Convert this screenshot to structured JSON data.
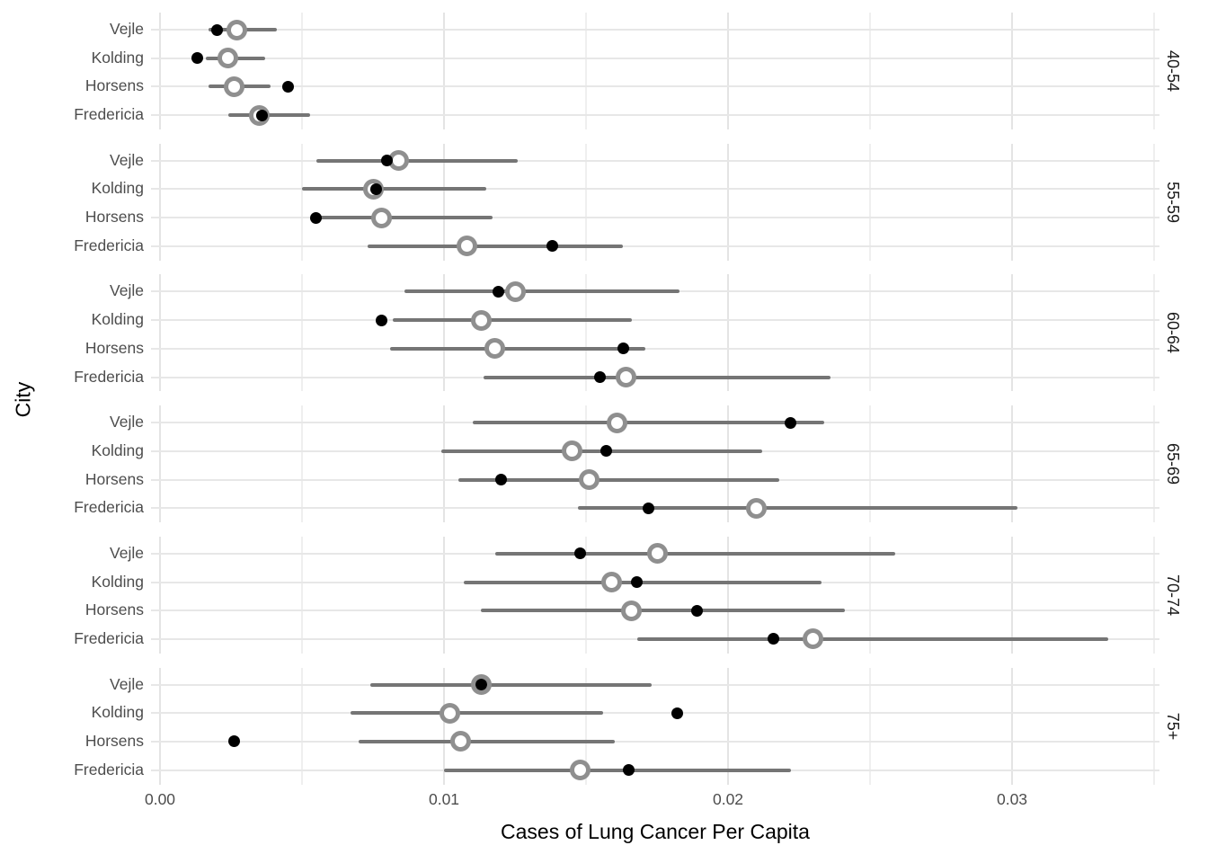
{
  "chart_data": {
    "type": "scatter",
    "subtype": "faceted-pointrange-dotplot",
    "title": "",
    "xlabel": "Cases of Lung Cancer Per Capita",
    "ylabel": "City",
    "x_tick_values": [
      0,
      0.01,
      0.02,
      0.03
    ],
    "x_tick_labels": [
      "0.00",
      "0.01",
      "0.02",
      "0.03"
    ],
    "x_minor_gridlines": [
      0.005,
      0.015,
      0.025,
      0.035
    ],
    "xlim": [
      -0.0003,
      0.0352
    ],
    "grid": true,
    "legend_position": "none",
    "facets": [
      "40-54",
      "55-59",
      "60-64",
      "65-69",
      "70-74",
      "75+"
    ],
    "categories": [
      "Vejle",
      "Kolding",
      "Horsens",
      "Fredericia"
    ],
    "series_legend": {
      "observed": "black filled point",
      "estimate": "gray open circle with gray interval line"
    },
    "rows": [
      {
        "facet": "40-54",
        "city": "Vejle",
        "observed": 0.002,
        "estimate": 0.0027,
        "lower": 0.0017,
        "upper": 0.0041
      },
      {
        "facet": "40-54",
        "city": "Kolding",
        "observed": 0.0013,
        "estimate": 0.0024,
        "lower": 0.0016,
        "upper": 0.0037
      },
      {
        "facet": "40-54",
        "city": "Horsens",
        "observed": 0.0045,
        "estimate": 0.0026,
        "lower": 0.0017,
        "upper": 0.0039
      },
      {
        "facet": "40-54",
        "city": "Fredericia",
        "observed": 0.0036,
        "estimate": 0.0035,
        "lower": 0.0024,
        "upper": 0.0053
      },
      {
        "facet": "55-59",
        "city": "Vejle",
        "observed": 0.008,
        "estimate": 0.0084,
        "lower": 0.0055,
        "upper": 0.0126
      },
      {
        "facet": "55-59",
        "city": "Kolding",
        "observed": 0.0076,
        "estimate": 0.0075,
        "lower": 0.005,
        "upper": 0.0115
      },
      {
        "facet": "55-59",
        "city": "Horsens",
        "observed": 0.0055,
        "estimate": 0.0078,
        "lower": 0.0054,
        "upper": 0.0117
      },
      {
        "facet": "55-59",
        "city": "Fredericia",
        "observed": 0.0138,
        "estimate": 0.0108,
        "lower": 0.0073,
        "upper": 0.0163
      },
      {
        "facet": "60-64",
        "city": "Vejle",
        "observed": 0.0119,
        "estimate": 0.0125,
        "lower": 0.0086,
        "upper": 0.0183
      },
      {
        "facet": "60-64",
        "city": "Kolding",
        "observed": 0.0078,
        "estimate": 0.0113,
        "lower": 0.0082,
        "upper": 0.0166
      },
      {
        "facet": "60-64",
        "city": "Horsens",
        "observed": 0.0163,
        "estimate": 0.0118,
        "lower": 0.0081,
        "upper": 0.0171
      },
      {
        "facet": "60-64",
        "city": "Fredericia",
        "observed": 0.0155,
        "estimate": 0.0164,
        "lower": 0.0114,
        "upper": 0.0236
      },
      {
        "facet": "65-69",
        "city": "Vejle",
        "observed": 0.0222,
        "estimate": 0.0161,
        "lower": 0.011,
        "upper": 0.0234
      },
      {
        "facet": "65-69",
        "city": "Kolding",
        "observed": 0.0157,
        "estimate": 0.0145,
        "lower": 0.0099,
        "upper": 0.0212
      },
      {
        "facet": "65-69",
        "city": "Horsens",
        "observed": 0.012,
        "estimate": 0.0151,
        "lower": 0.0105,
        "upper": 0.0218
      },
      {
        "facet": "65-69",
        "city": "Fredericia",
        "observed": 0.0172,
        "estimate": 0.021,
        "lower": 0.0147,
        "upper": 0.0302
      },
      {
        "facet": "70-74",
        "city": "Vejle",
        "observed": 0.0148,
        "estimate": 0.0175,
        "lower": 0.0118,
        "upper": 0.0259
      },
      {
        "facet": "70-74",
        "city": "Kolding",
        "observed": 0.0168,
        "estimate": 0.0159,
        "lower": 0.0107,
        "upper": 0.0233
      },
      {
        "facet": "70-74",
        "city": "Horsens",
        "observed": 0.0189,
        "estimate": 0.0166,
        "lower": 0.0113,
        "upper": 0.0241
      },
      {
        "facet": "70-74",
        "city": "Fredericia",
        "observed": 0.0216,
        "estimate": 0.023,
        "lower": 0.0168,
        "upper": 0.0334
      },
      {
        "facet": "75+",
        "city": "Vejle",
        "observed": 0.0113,
        "estimate": 0.0113,
        "lower": 0.0074,
        "upper": 0.0173
      },
      {
        "facet": "75+",
        "city": "Kolding",
        "observed": 0.0182,
        "estimate": 0.0102,
        "lower": 0.0067,
        "upper": 0.0156
      },
      {
        "facet": "75+",
        "city": "Horsens",
        "observed": 0.0026,
        "estimate": 0.0106,
        "lower": 0.007,
        "upper": 0.016
      },
      {
        "facet": "75+",
        "city": "Fredericia",
        "observed": 0.0165,
        "estimate": 0.0148,
        "lower": 0.01,
        "upper": 0.0222
      }
    ]
  },
  "colors": {
    "background": "#ffffff",
    "grid_major": "#e4e4e4",
    "grid_minor": "#efefef",
    "row_grid": "#e7e7e7",
    "interval": "#757575",
    "ring": "#8f8f8f",
    "dot": "#000000",
    "axis_text": "#4d4d4d",
    "title_text": "#000000",
    "strip_text": "#1a1a1a"
  }
}
